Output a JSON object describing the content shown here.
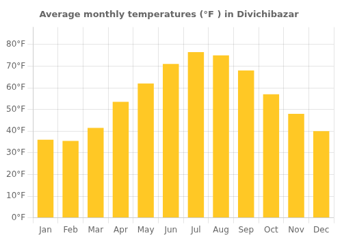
{
  "chart_data": {
    "type": "bar",
    "title": "Average monthly temperatures (°F ) in Divichibazar",
    "categories": [
      "Jan",
      "Feb",
      "Mar",
      "Apr",
      "May",
      "Jun",
      "Jul",
      "Aug",
      "Sep",
      "Oct",
      "Nov",
      "Dec"
    ],
    "values": [
      36,
      35.5,
      41.5,
      53.5,
      62,
      71,
      76.5,
      75,
      68,
      57,
      48,
      40
    ],
    "color": "#FFC825",
    "ylim": [
      0,
      88
    ],
    "yticks": [
      {
        "value": 0,
        "label": "0°F"
      },
      {
        "value": 10,
        "label": "10°F"
      },
      {
        "value": 20,
        "label": "20°F"
      },
      {
        "value": 30,
        "label": "30°F"
      },
      {
        "value": 40,
        "label": "40°F"
      },
      {
        "value": 50,
        "label": "50°F"
      },
      {
        "value": 60,
        "label": "60°F"
      },
      {
        "value": 70,
        "label": "70°F"
      },
      {
        "value": 80,
        "label": "80°F"
      }
    ],
    "grid": true
  }
}
